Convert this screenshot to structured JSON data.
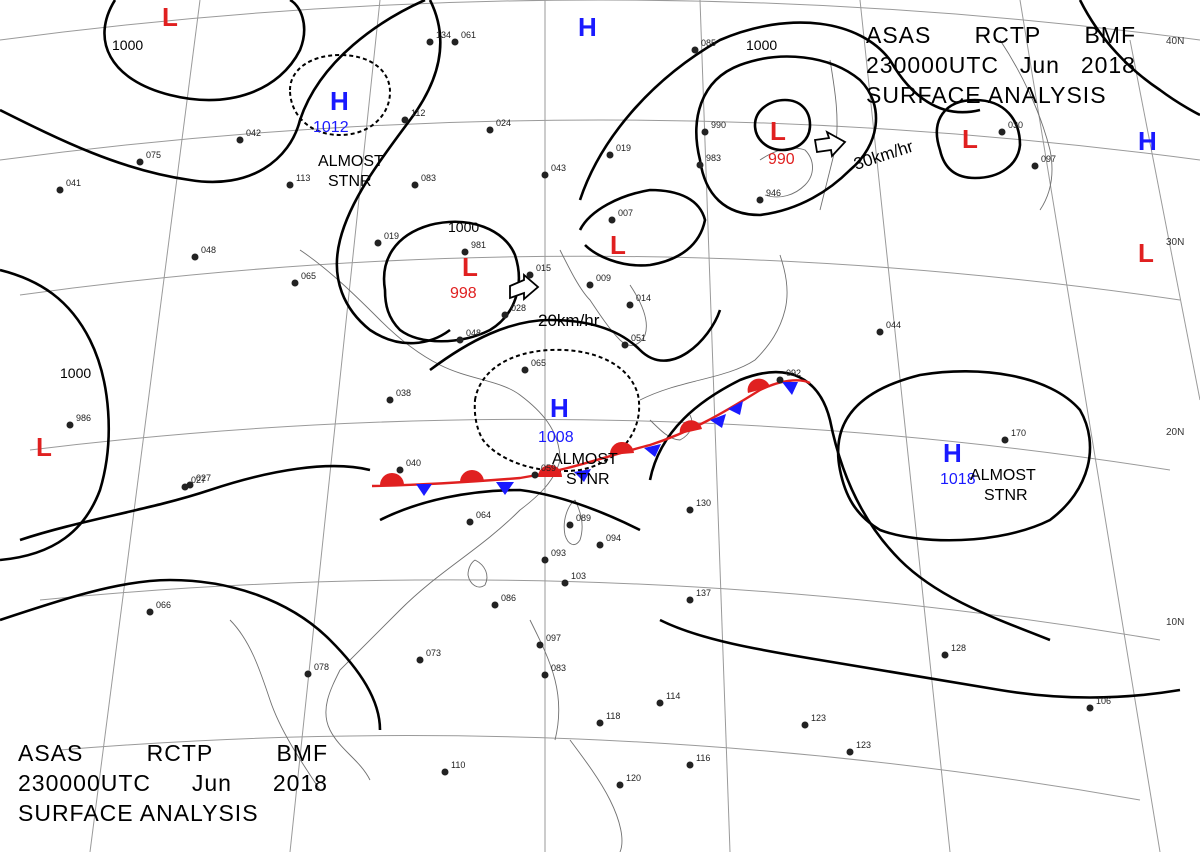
{
  "title": {
    "line1": [
      "ASAS",
      "RCTP",
      "BMF"
    ],
    "line2": [
      "230000UTC",
      "Jun",
      "2018"
    ],
    "line3": "SURFACE ANALYSIS"
  },
  "colors": {
    "high": "#1a1aff",
    "low": "#e02020",
    "warm_front": "#e02020",
    "cold_front": "#1a1aff",
    "isobar": "#000000",
    "grid": "#9a9a9a"
  },
  "latitude_labels": [
    "40N",
    "30N",
    "20N",
    "10N"
  ],
  "pressure_systems": [
    {
      "id": "h-1012",
      "type": "H",
      "value": "1012"
    },
    {
      "id": "h-top",
      "type": "H",
      "value": ""
    },
    {
      "id": "h-1008",
      "type": "H",
      "value": "1008"
    },
    {
      "id": "h-1018",
      "type": "H",
      "value": "1018"
    },
    {
      "id": "h-right",
      "type": "H",
      "value": ""
    },
    {
      "id": "l-998",
      "type": "L",
      "value": "998"
    },
    {
      "id": "l-990",
      "type": "L",
      "value": "990"
    },
    {
      "id": "l-topleft",
      "type": "L",
      "value": ""
    },
    {
      "id": "l-left",
      "type": "L",
      "value": ""
    },
    {
      "id": "l-east",
      "type": "L",
      "value": ""
    },
    {
      "id": "l-right",
      "type": "L",
      "value": ""
    },
    {
      "id": "l-korea",
      "type": "L",
      "value": ""
    }
  ],
  "isobar_labels": [
    "1000",
    "1000",
    "1000",
    "1000"
  ],
  "notes": {
    "stnr_line1": "ALMOST",
    "stnr_line2": "STNR"
  },
  "movement": {
    "low_998": "20km/hr",
    "low_990": "30km/hr"
  },
  "stations": [
    "061",
    "024",
    "019",
    "043",
    "015",
    "009",
    "014",
    "051",
    "065",
    "048",
    "038",
    "040",
    "059",
    "064",
    "089",
    "094",
    "093",
    "103",
    "086",
    "066",
    "027",
    "078",
    "073",
    "097",
    "083",
    "118",
    "114",
    "110",
    "116",
    "120",
    "123",
    "123",
    "106",
    "128",
    "137",
    "170",
    "130",
    "092",
    "044",
    "097",
    "030",
    "085",
    "990",
    "983",
    "946",
    "007",
    "981",
    "028",
    "019",
    "065",
    "048",
    "075",
    "041",
    "986",
    "027",
    "042",
    "113",
    "083",
    "112",
    "134"
  ]
}
